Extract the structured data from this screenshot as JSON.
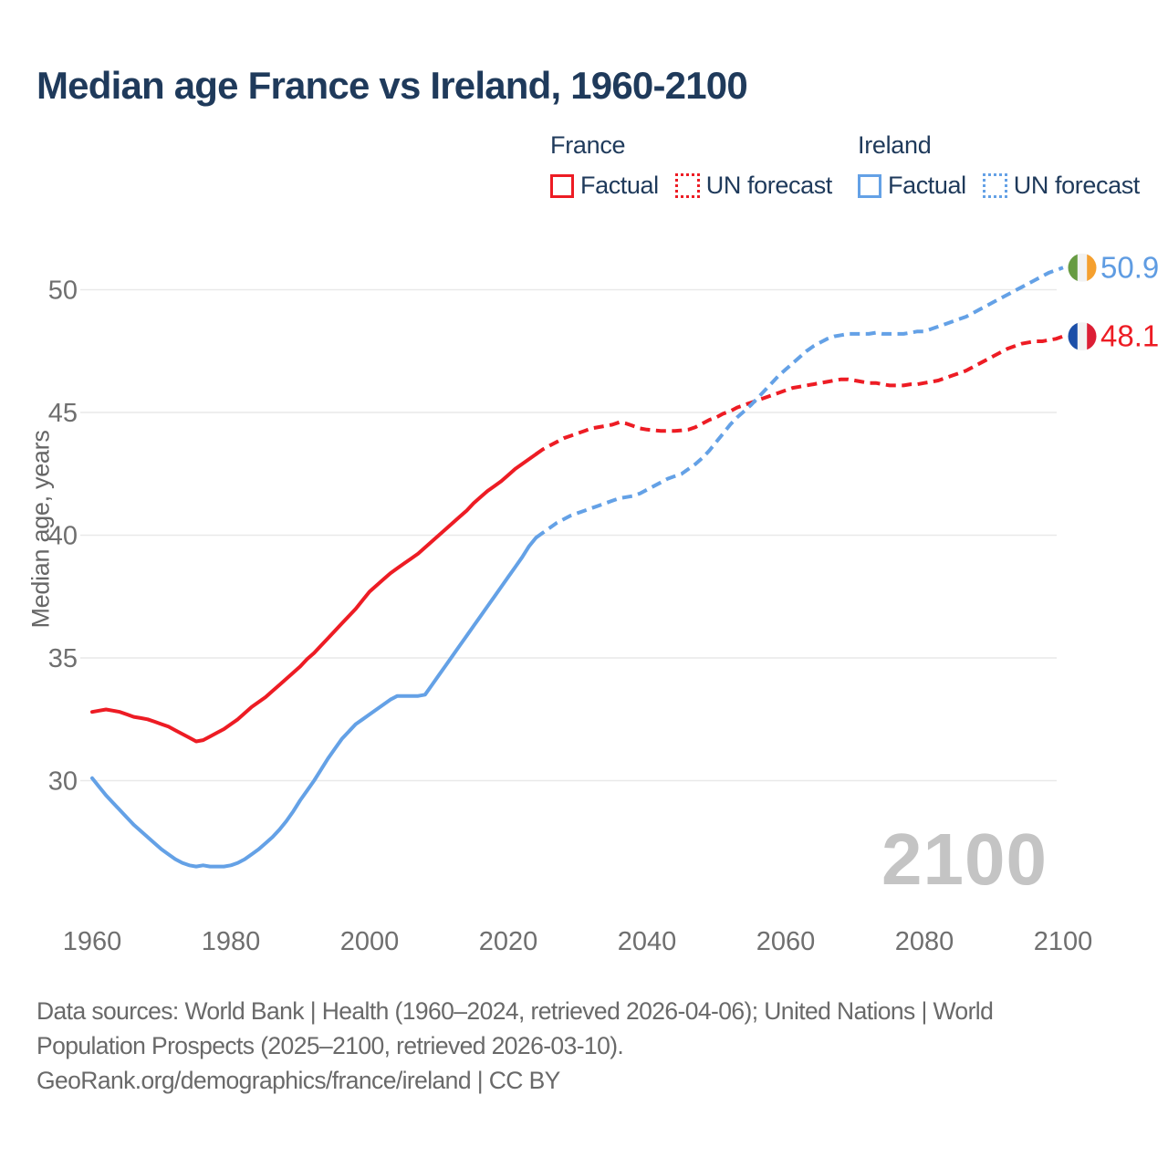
{
  "header": {
    "title": "Median age France vs Ireland, 1960-2100"
  },
  "legend": {
    "france": {
      "label": "France",
      "factual": "Factual",
      "forecast": "UN forecast"
    },
    "ireland": {
      "label": "Ireland",
      "factual": "Factual",
      "forecast": "UN forecast"
    }
  },
  "colors": {
    "france_red": "#ed1c24",
    "ireland_blue": "#64a1e6",
    "title_navy": "#1f3a5b",
    "tick_gray": "#6f6f6f",
    "gridline_gray": "#e9e9e9",
    "watermark_gray": "#c4c4c4",
    "ireland_flag": [
      "#679b42",
      "#f2f2f2",
      "#f5a02f"
    ],
    "france_flag": [
      "#1c4fa8",
      "#f2f2f2",
      "#dc1e35"
    ]
  },
  "chart_data": {
    "type": "line",
    "title": "Median age France vs Ireland, 1960-2100",
    "xlabel": "",
    "ylabel": "Median age, years",
    "xlim": [
      1960,
      2100
    ],
    "ylim": [
      26,
      52
    ],
    "xticks": [
      1960,
      1980,
      2000,
      2020,
      2040,
      2060,
      2080,
      2100
    ],
    "yticks": [
      30,
      35,
      40,
      45,
      50
    ],
    "grid": "horizontal",
    "legend_position": "top",
    "watermark": "2100",
    "series": [
      {
        "id": "france-factual",
        "name": "France Factual",
        "color": "#ed1c24",
        "style": "solid",
        "start_year": 1960,
        "values": [
          32.8,
          32.85,
          32.9,
          32.85,
          32.8,
          32.7,
          32.6,
          32.55,
          32.5,
          32.4,
          32.3,
          32.2,
          32.05,
          31.9,
          31.75,
          31.6,
          31.65,
          31.8,
          31.95,
          32.1,
          32.3,
          32.5,
          32.75,
          33.0,
          33.2,
          33.4,
          33.65,
          33.9,
          34.15,
          34.4,
          34.65,
          34.95,
          35.2,
          35.5,
          35.8,
          36.1,
          36.4,
          36.7,
          37.0,
          37.35,
          37.7,
          37.95,
          38.2,
          38.45,
          38.65,
          38.85,
          39.05,
          39.25,
          39.5,
          39.75,
          40.0,
          40.25,
          40.5,
          40.75,
          41.0,
          41.3,
          41.55,
          41.8,
          42.0,
          42.2,
          42.45,
          42.7,
          42.9,
          43.1,
          43.3
        ]
      },
      {
        "id": "france-forecast",
        "name": "France UN forecast",
        "color": "#ed1c24",
        "style": "dashed",
        "start_year": 2024,
        "values": [
          43.3,
          43.5,
          43.65,
          43.8,
          43.95,
          44.05,
          44.15,
          44.25,
          44.35,
          44.4,
          44.45,
          44.5,
          44.6,
          44.55,
          44.45,
          44.35,
          44.3,
          44.27,
          44.25,
          44.25,
          44.25,
          44.27,
          44.3,
          44.4,
          44.55,
          44.7,
          44.8,
          44.95,
          45.05,
          45.2,
          45.3,
          45.4,
          45.5,
          45.6,
          45.7,
          45.8,
          45.9,
          46.0,
          46.05,
          46.1,
          46.15,
          46.2,
          46.25,
          46.3,
          46.35,
          46.35,
          46.3,
          46.25,
          46.2,
          46.2,
          46.15,
          46.1,
          46.1,
          46.1,
          46.15,
          46.15,
          46.2,
          46.25,
          46.3,
          46.4,
          46.5,
          46.6,
          46.7,
          46.85,
          47.0,
          47.15,
          47.3,
          47.45,
          47.6,
          47.7,
          47.8,
          47.85,
          47.9,
          47.9,
          47.95,
          48.0,
          48.1
        ]
      },
      {
        "id": "ireland-factual",
        "name": "Ireland Factual",
        "color": "#64a1e6",
        "style": "solid",
        "start_year": 1960,
        "values": [
          30.1,
          29.75,
          29.4,
          29.1,
          28.8,
          28.5,
          28.2,
          27.95,
          27.7,
          27.45,
          27.2,
          27.0,
          26.8,
          26.65,
          26.55,
          26.5,
          26.55,
          26.5,
          26.5,
          26.5,
          26.55,
          26.65,
          26.8,
          27.0,
          27.2,
          27.45,
          27.7,
          28.0,
          28.35,
          28.75,
          29.2,
          29.6,
          30.0,
          30.45,
          30.9,
          31.3,
          31.7,
          32.0,
          32.3,
          32.5,
          32.7,
          32.9,
          33.1,
          33.3,
          33.45,
          33.45,
          33.45,
          33.45,
          33.5,
          33.9,
          34.3,
          34.7,
          35.1,
          35.5,
          35.9,
          36.3,
          36.7,
          37.1,
          37.5,
          37.9,
          38.3,
          38.7,
          39.1,
          39.55,
          39.9
        ]
      },
      {
        "id": "ireland-forecast",
        "name": "Ireland UN forecast",
        "color": "#64a1e6",
        "style": "dashed",
        "start_year": 2024,
        "values": [
          39.9,
          40.1,
          40.3,
          40.5,
          40.65,
          40.8,
          40.9,
          41.0,
          41.1,
          41.2,
          41.3,
          41.4,
          41.5,
          41.55,
          41.6,
          41.7,
          41.85,
          42.0,
          42.15,
          42.3,
          42.4,
          42.5,
          42.7,
          42.9,
          43.15,
          43.45,
          43.8,
          44.15,
          44.5,
          44.8,
          45.05,
          45.3,
          45.6,
          45.9,
          46.2,
          46.5,
          46.75,
          47.0,
          47.25,
          47.5,
          47.7,
          47.85,
          48.0,
          48.1,
          48.15,
          48.2,
          48.2,
          48.2,
          48.2,
          48.25,
          48.2,
          48.2,
          48.2,
          48.2,
          48.25,
          48.3,
          48.3,
          48.4,
          48.5,
          48.6,
          48.7,
          48.8,
          48.9,
          49.05,
          49.2,
          49.35,
          49.5,
          49.65,
          49.8,
          49.95,
          50.1,
          50.25,
          50.4,
          50.55,
          50.7,
          50.8,
          50.9
        ]
      }
    ],
    "end_labels": [
      {
        "id": "ireland",
        "value": "50.9",
        "age": 50.9,
        "text_color": "#5f9ce2",
        "flag": [
          "#679b42",
          "#f2f2f2",
          "#f5a02f"
        ]
      },
      {
        "id": "france",
        "value": "48.1",
        "age": 48.1,
        "text_color": "#ed1c24",
        "flag": [
          "#1c4fa8",
          "#f2f2f2",
          "#dc1e35"
        ]
      }
    ]
  },
  "footer": {
    "lines": [
      "Data sources: World Bank | Health (1960–2024, retrieved 2026-04-06); United Nations | World",
      "Population Prospects (2025–2100, retrieved 2026-03-10).",
      "GeoRank.org/demographics/france/ireland | CC BY"
    ]
  }
}
